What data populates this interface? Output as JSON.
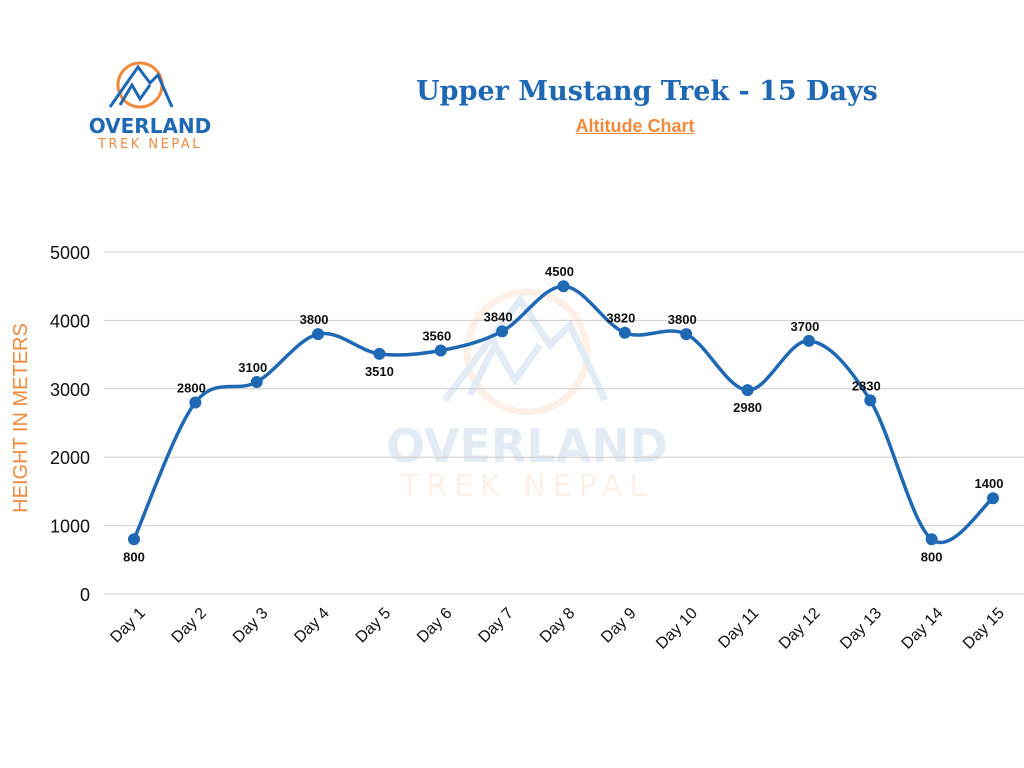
{
  "logo": {
    "line1": "OVERLAND",
    "line2": "TREK NEPAL"
  },
  "watermark": {
    "line1": "OVERLAND",
    "line2": "TREK NEPAL"
  },
  "chart_data": {
    "type": "line",
    "title": "Upper Mustang Trek - 15 Days",
    "subtitle": "Altitude Chart",
    "ylabel": "HEIGHT IN METERS",
    "xlabel": "",
    "categories": [
      "Day 1",
      "Day 2",
      "Day 3",
      "Day 4",
      "Day 5",
      "Day 6",
      "Day 7",
      "Day 8",
      "Day 9",
      "Day 10",
      "Day 11",
      "Day 12",
      "Day 13",
      "Day 14",
      "Day 15"
    ],
    "values": [
      800,
      2800,
      3100,
      3800,
      3510,
      3560,
      3840,
      4500,
      3820,
      3800,
      2980,
      3700,
      2830,
      800,
      1400
    ],
    "ylim": [
      0,
      5000
    ],
    "yticks": [
      0,
      1000,
      2000,
      3000,
      4000,
      5000
    ],
    "grid": true,
    "smooth": true,
    "legend": "none",
    "colors": {
      "line": "#1f68b3",
      "title": "#1f68b3",
      "subtitle": "#ef8a3c",
      "ylabel": "#ef8a3c",
      "grid": "#cccccc"
    }
  }
}
